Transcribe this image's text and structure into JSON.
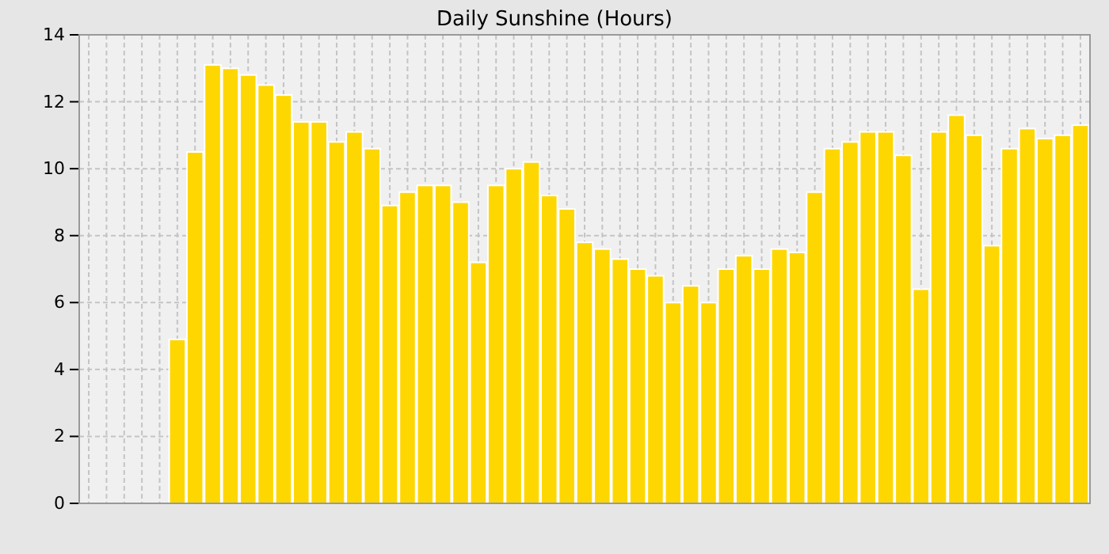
{
  "chart_data": {
    "type": "bar",
    "title": "Daily Sunshine (Hours)",
    "categories": [
      null,
      null,
      null,
      null,
      null,
      null,
      null,
      null,
      null,
      null,
      null,
      null,
      null,
      null,
      null,
      null,
      null,
      null,
      null,
      null,
      null,
      null,
      null,
      null,
      null,
      null,
      null,
      null,
      null,
      null,
      null,
      null,
      null,
      null,
      null,
      null,
      null,
      null,
      null,
      null,
      null,
      null,
      null,
      null,
      null,
      null,
      null,
      null,
      null,
      null,
      null,
      null,
      null,
      null,
      null,
      null,
      null
    ],
    "values": [
      null,
      null,
      null,
      null,
      null,
      4.9,
      10.5,
      13.1,
      13.0,
      12.8,
      12.5,
      12.2,
      11.4,
      11.4,
      10.8,
      11.1,
      10.6,
      8.9,
      9.3,
      9.5,
      9.5,
      9.0,
      7.2,
      9.5,
      10.0,
      10.2,
      9.2,
      8.8,
      7.8,
      7.6,
      7.3,
      7.0,
      6.8,
      6.0,
      6.5,
      6.0,
      7.0,
      7.4,
      7.0,
      7.6,
      7.5,
      9.3,
      10.6,
      10.8,
      11.1,
      11.1,
      10.4,
      6.4,
      11.1,
      11.6,
      11.0,
      7.7,
      10.6,
      11.2,
      10.9,
      11.0,
      11.3
    ],
    "color": "#ffd700",
    "ylim": [
      0,
      14
    ],
    "yticks": [
      0,
      2,
      4,
      6,
      8,
      10,
      12,
      14
    ],
    "grid": true
  }
}
